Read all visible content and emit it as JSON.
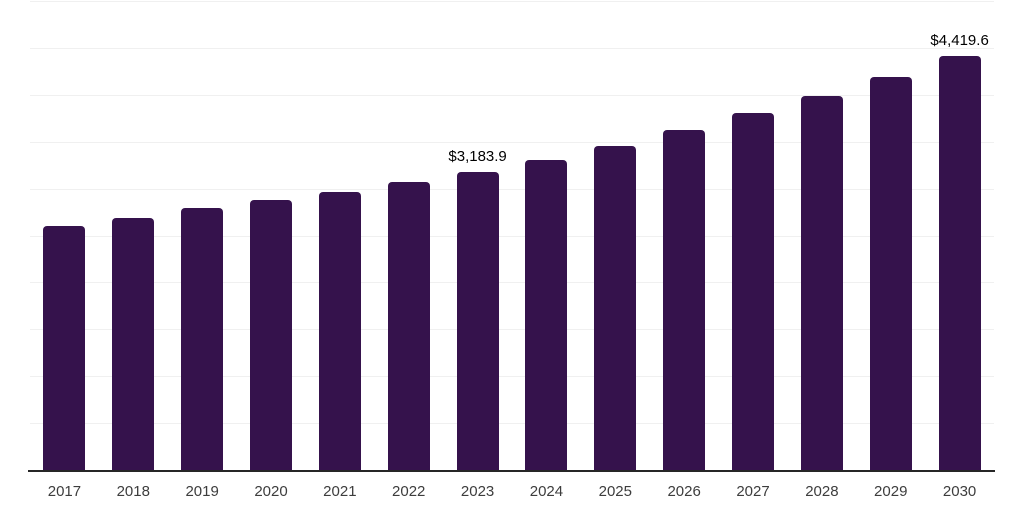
{
  "chart_data": {
    "type": "bar",
    "title": "",
    "categories": [
      "2017",
      "2018",
      "2019",
      "2020",
      "2021",
      "2022",
      "2023",
      "2024",
      "2025",
      "2026",
      "2027",
      "2028",
      "2029",
      "2030"
    ],
    "values": [
      2609.4,
      2698.4,
      2800.3,
      2892.6,
      2974.0,
      3076.1,
      3183.9,
      3313.6,
      3465.3,
      3631.8,
      3812.1,
      3998.8,
      4197.1,
      4419.6
    ],
    "value_labels": [
      "",
      "",
      "",
      "",
      "",
      "",
      "$3,183.9",
      "",
      "",
      "",
      "",
      "",
      "",
      "$4,419.6"
    ],
    "ylim": [
      0,
      5000
    ],
    "gridline_step": 500,
    "grid": "horizontal-only",
    "legend": "none",
    "y_axis_tick_labels": "none",
    "colors": {
      "bar": "#35124C",
      "gridline": "#f0f0f0",
      "axis_line": "#262626",
      "value_label": "#000000",
      "tick_label": "#3d3d3d",
      "background": "#ffffff"
    }
  }
}
